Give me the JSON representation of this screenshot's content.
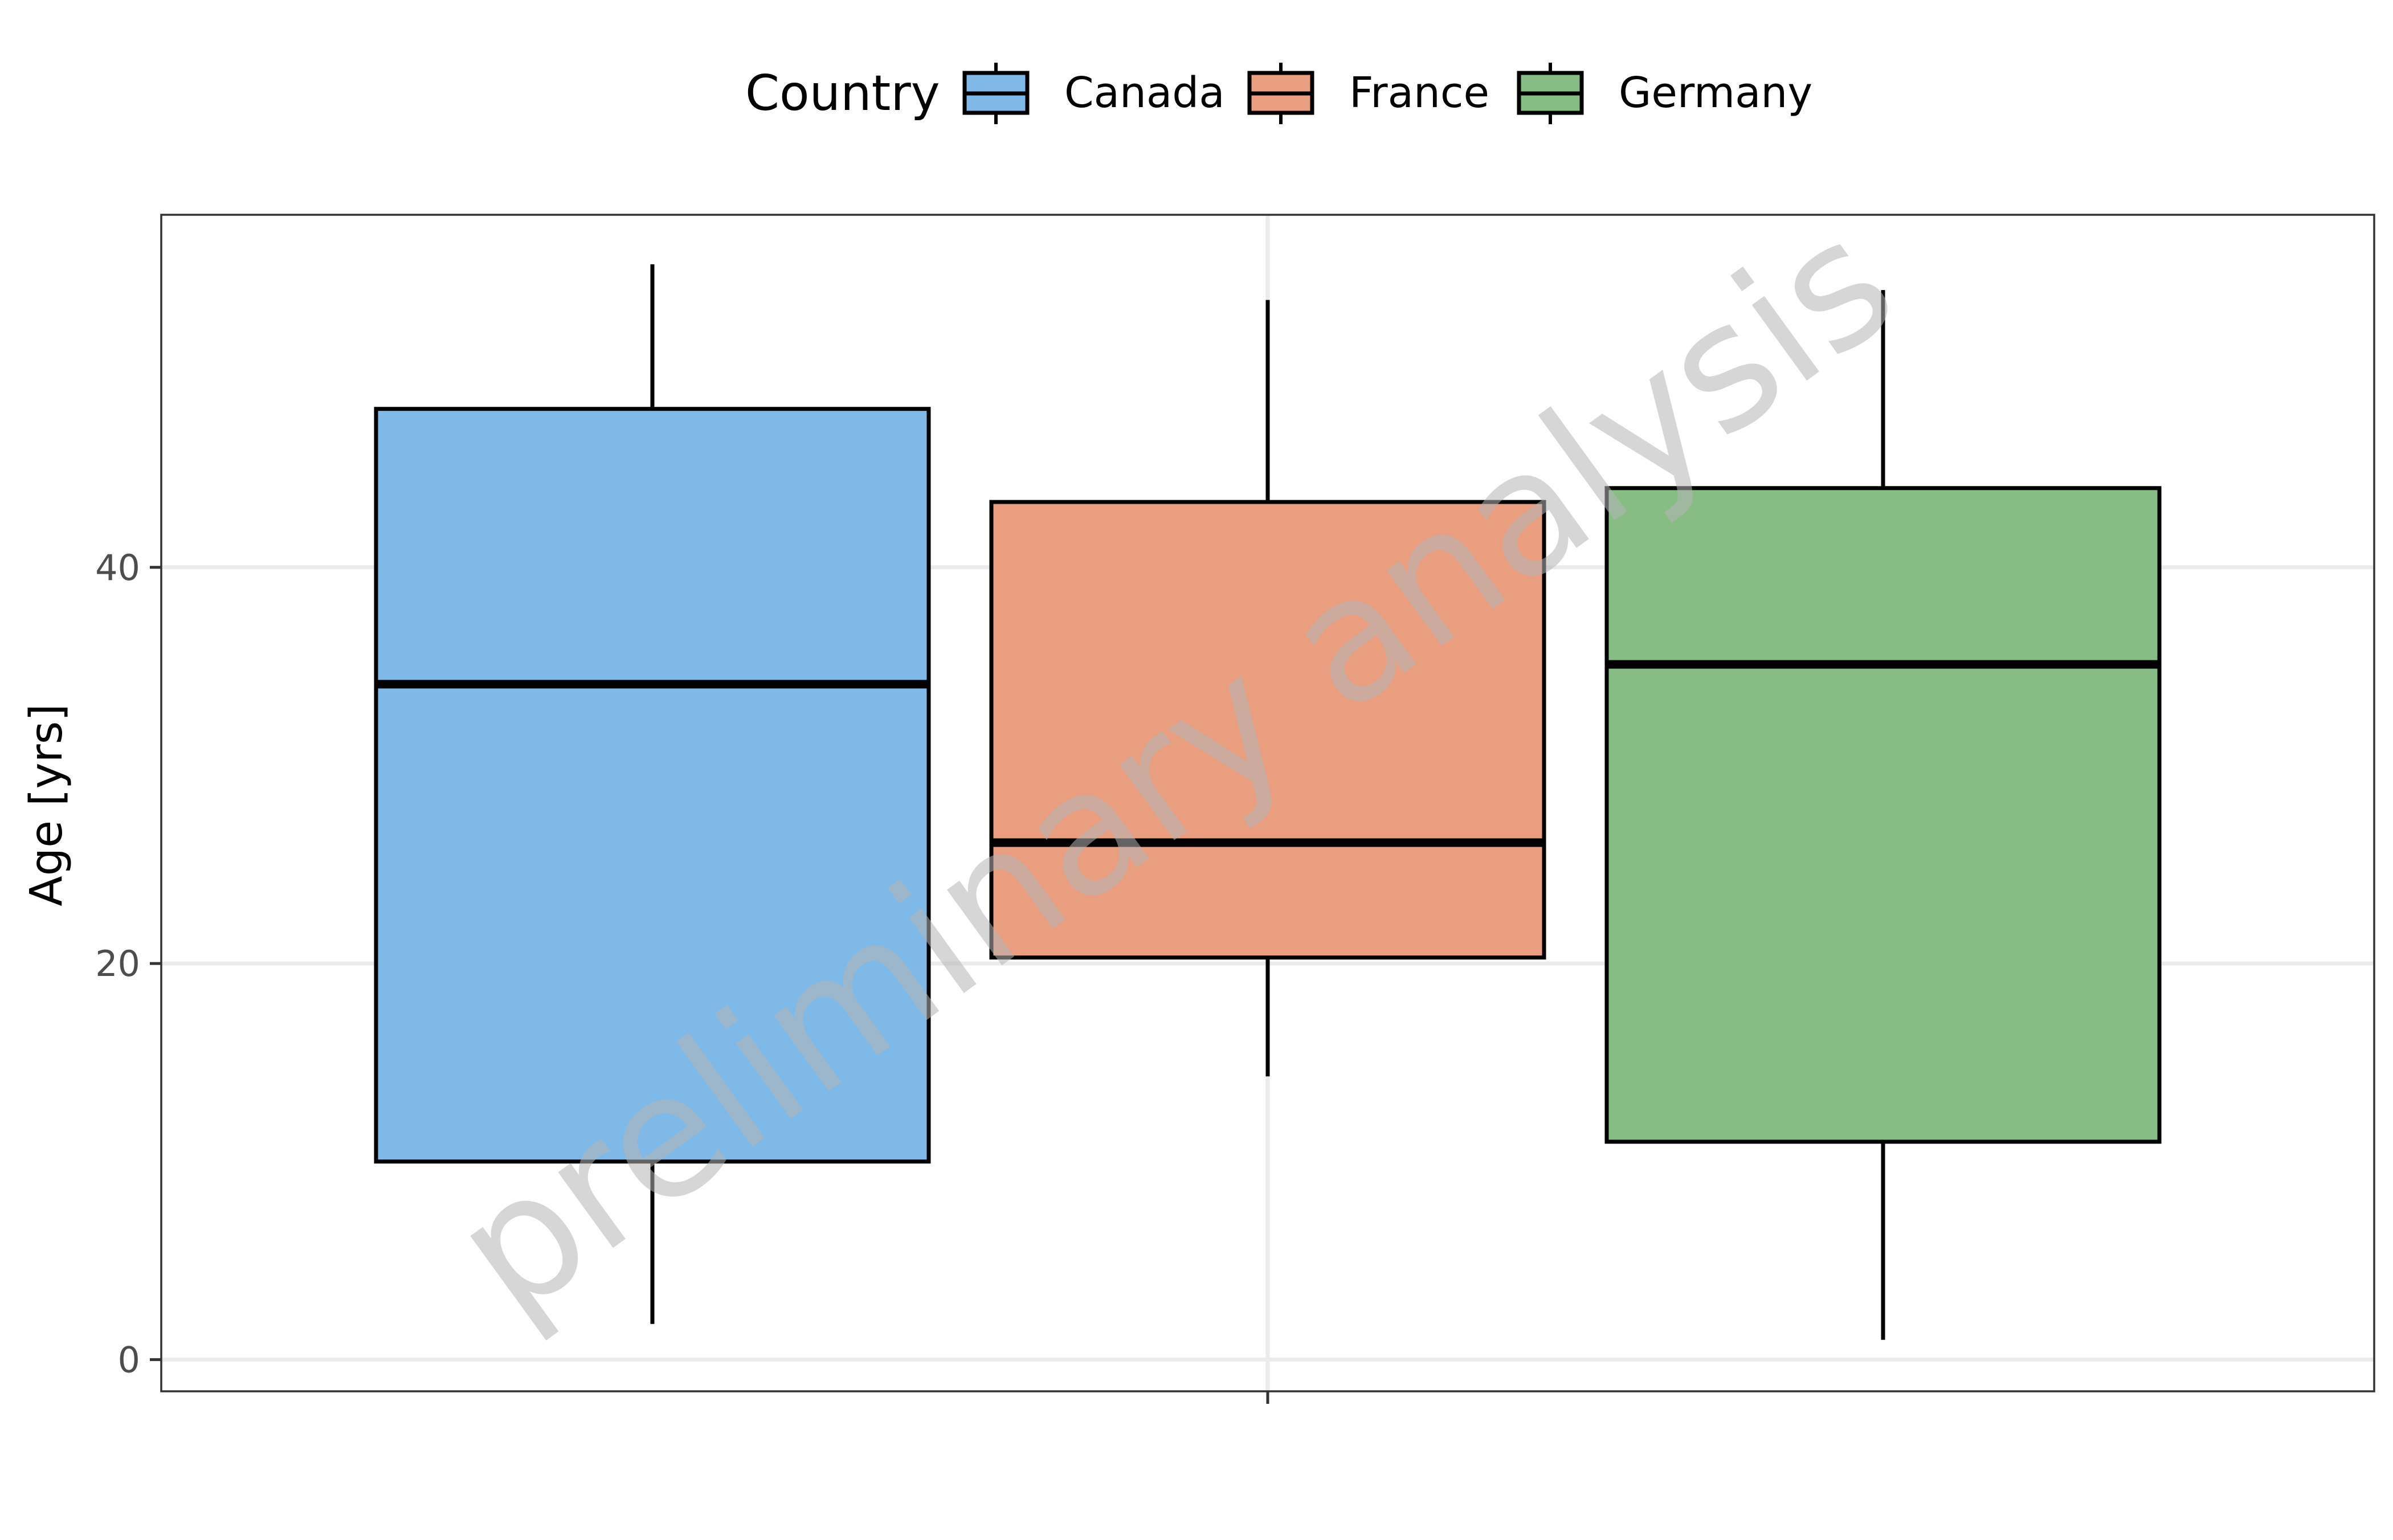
{
  "chart_data": {
    "type": "boxplot",
    "ylabel": "Age [yrs]",
    "xlabel": "",
    "ylim": [
      -1.6,
      57.8
    ],
    "yticks": [
      0,
      20,
      40
    ],
    "grid": true,
    "legend": {
      "title": "Country",
      "position": "top",
      "entries": [
        "Canada",
        "France",
        "Germany"
      ]
    },
    "series": [
      {
        "name": "Canada",
        "color": "#7EB9E8",
        "whisker_low": 1.8,
        "q1": 10.0,
        "median": 34.1,
        "q3": 48.0,
        "whisker_high": 55.3
      },
      {
        "name": "France",
        "color": "#E99E80",
        "whisker_low": 14.3,
        "q1": 20.3,
        "median": 26.1,
        "q3": 43.3,
        "whisker_high": 53.5
      },
      {
        "name": "Germany",
        "color": "#88BC85",
        "whisker_low": 1.0,
        "q1": 11.0,
        "median": 35.1,
        "q3": 44.0,
        "whisker_high": 54.0
      }
    ],
    "watermark": "preliminary analysis"
  }
}
